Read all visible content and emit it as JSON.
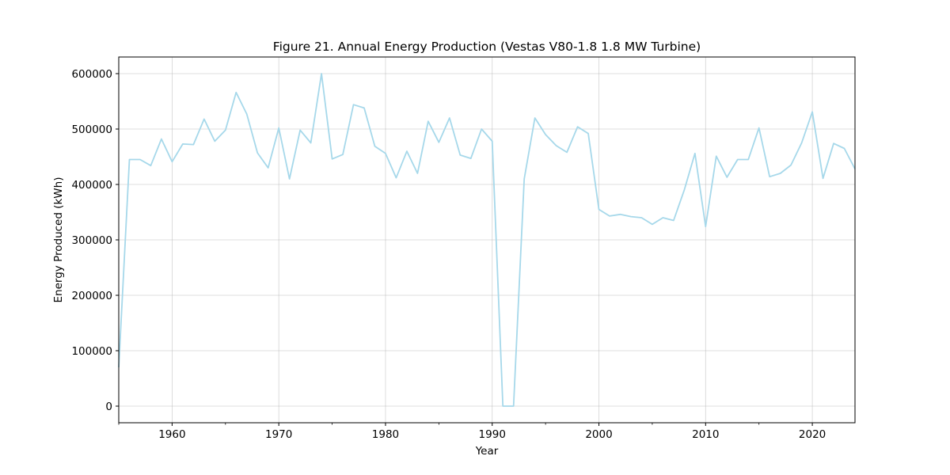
{
  "chart_data": {
    "type": "line",
    "title": "Figure 21. Annual Energy Production (Vestas V80-1.8 1.8 MW Turbine)",
    "xlabel": "Year",
    "ylabel": "Energy Produced (kWh)",
    "xlim": [
      1955,
      2024
    ],
    "ylim": [
      -30000,
      630000
    ],
    "xticks": [
      1960,
      1970,
      1980,
      1990,
      2000,
      2010,
      2020
    ],
    "xminor_ticks": [
      1955,
      1965,
      1975,
      1985,
      1995,
      2005,
      2015
    ],
    "yticks": [
      0,
      100000,
      200000,
      300000,
      400000,
      500000,
      600000
    ],
    "grid": true,
    "line_color": "#a6d8ea",
    "series": [
      {
        "x": [
          1955,
          1956,
          1957,
          1958,
          1959,
          1960,
          1961,
          1962,
          1963,
          1964,
          1965,
          1966,
          1967,
          1968,
          1969,
          1970,
          1971,
          1972,
          1973,
          1974,
          1975,
          1976,
          1977,
          1978,
          1979,
          1980,
          1981,
          1982,
          1983,
          1984,
          1985,
          1986,
          1987,
          1988,
          1989,
          1990,
          1991,
          1992,
          1993,
          1994,
          1995,
          1996,
          1997,
          1998,
          1999,
          2000,
          2001,
          2002,
          2003,
          2004,
          2005,
          2006,
          2007,
          2008,
          2009,
          2010,
          2011,
          2012,
          2013,
          2014,
          2015,
          2016,
          2017,
          2018,
          2019,
          2020,
          2021,
          2022,
          2023,
          2024
        ],
        "y": [
          70000,
          445000,
          445000,
          434000,
          482000,
          441000,
          473000,
          472000,
          518000,
          478000,
          498000,
          566000,
          527000,
          457000,
          430000,
          502000,
          410000,
          498000,
          475000,
          600000,
          446000,
          454000,
          544000,
          538000,
          469000,
          456000,
          412000,
          460000,
          420000,
          514000,
          476000,
          520000,
          453000,
          447000,
          500000,
          478000,
          0,
          0,
          410000,
          520000,
          490000,
          470000,
          458000,
          504000,
          492000,
          355000,
          343000,
          346000,
          342000,
          340000,
          328000,
          340000,
          335000,
          390000,
          456000,
          324000,
          451000,
          413000,
          445000,
          445000,
          502000,
          414000,
          420000,
          435000,
          475000,
          531000,
          411000,
          474000,
          465000,
          428000
        ]
      }
    ]
  }
}
